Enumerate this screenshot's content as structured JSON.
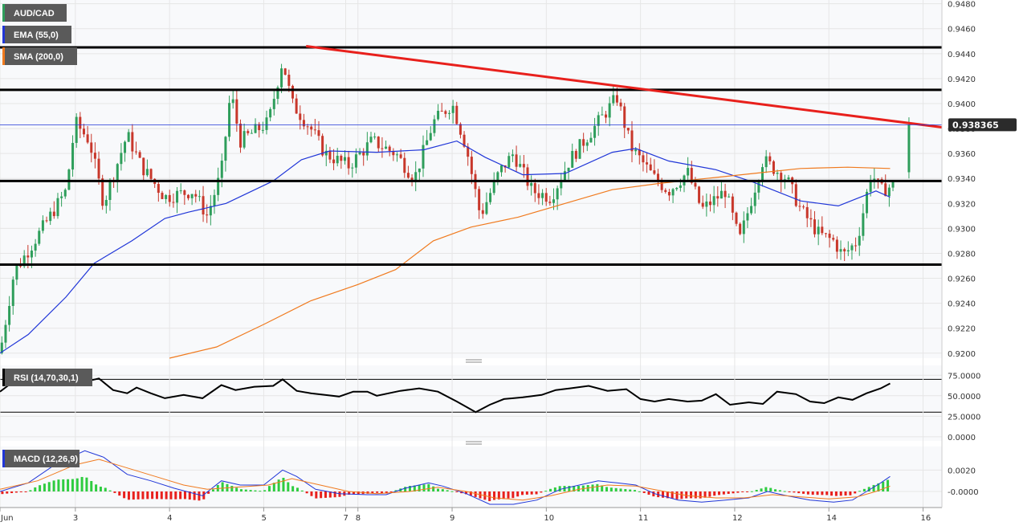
{
  "chart_data": {
    "type": "candlestick",
    "symbol": "AUD/CAD",
    "indicators": {
      "ema": {
        "label": "EMA (55,0)",
        "color": "#2036d8"
      },
      "sma": {
        "label": "SMA (200,0)",
        "color": "#f07a1e"
      },
      "rsi": {
        "label": "RSI (14,70,30,1)",
        "ticks": [
          "75.0000",
          "50.0000",
          "25.0000",
          "0.0000"
        ],
        "levels": [
          70,
          30
        ]
      },
      "macd": {
        "label": "MACD (12,26,9)",
        "ticks": [
          "0.0020",
          "-0.0000"
        ]
      }
    },
    "price_axis": {
      "ticks": [
        "0.9480",
        "0.9460",
        "0.9440",
        "0.9420",
        "0.9400",
        "0.9380",
        "0.9360",
        "0.9340",
        "0.9320",
        "0.9300",
        "0.9280",
        "0.9260",
        "0.9240",
        "0.9220",
        "0.9200"
      ],
      "ylim": [
        0.9196,
        0.9483
      ]
    },
    "x_axis": {
      "ticks": [
        "Jun",
        "3",
        "4",
        "5",
        "7",
        "8",
        "9",
        "10",
        "11",
        "12",
        "14",
        "16"
      ],
      "xlim": [
        0,
        10
      ]
    },
    "current_price": {
      "value": 0.9383,
      "label": "0.938365"
    },
    "horizontal_levels": [
      0.9445,
      0.9411,
      0.9338,
      0.9271
    ],
    "trendline": {
      "from": [
        3.25,
        0.9446
      ],
      "to": [
        10,
        0.9381
      ],
      "color": "#e8201c"
    },
    "colors": {
      "up": "#2e9e5b",
      "down": "#c8372b",
      "grid": "#e6e6e6",
      "rsi": "#000000",
      "macd_line": "#2036d8",
      "signal_line": "#f07a1e",
      "hist_up": "#2ecc40",
      "hist_down": "#e8201c"
    },
    "ema_series": [
      [
        0,
        0.92
      ],
      [
        0.3,
        0.9215
      ],
      [
        0.7,
        0.9245
      ],
      [
        1.0,
        0.9272
      ],
      [
        1.4,
        0.929
      ],
      [
        1.75,
        0.9308
      ],
      [
        2.0,
        0.9313
      ],
      [
        2.4,
        0.932
      ],
      [
        2.9,
        0.9338
      ],
      [
        3.2,
        0.9355
      ],
      [
        3.5,
        0.9362
      ],
      [
        4.0,
        0.9361
      ],
      [
        4.5,
        0.9363
      ],
      [
        4.85,
        0.937
      ],
      [
        5.15,
        0.9357
      ],
      [
        5.55,
        0.9343
      ],
      [
        6.0,
        0.9344
      ],
      [
        6.5,
        0.9361
      ],
      [
        6.75,
        0.9364
      ],
      [
        7.1,
        0.9354
      ],
      [
        7.6,
        0.9347
      ],
      [
        8.0,
        0.9337
      ],
      [
        8.5,
        0.9322
      ],
      [
        8.9,
        0.9318
      ],
      [
        9.3,
        0.933
      ],
      [
        9.45,
        0.9325
      ]
    ],
    "sma_series": [
      [
        1.8,
        0.9196
      ],
      [
        2.3,
        0.9205
      ],
      [
        2.8,
        0.9223
      ],
      [
        3.3,
        0.9242
      ],
      [
        3.8,
        0.9255
      ],
      [
        4.2,
        0.9267
      ],
      [
        4.6,
        0.929
      ],
      [
        5.0,
        0.9301
      ],
      [
        5.5,
        0.9309
      ],
      [
        6.0,
        0.932
      ],
      [
        6.5,
        0.9331
      ],
      [
        7.0,
        0.9336
      ],
      [
        7.5,
        0.934
      ],
      [
        8.0,
        0.9344
      ],
      [
        8.5,
        0.9348
      ],
      [
        9.0,
        0.9349
      ],
      [
        9.45,
        0.9348
      ]
    ],
    "rsi_series": [
      [
        0,
        55
      ],
      [
        0.15,
        68
      ],
      [
        0.3,
        71
      ],
      [
        0.5,
        68
      ],
      [
        0.7,
        72
      ],
      [
        0.9,
        67
      ],
      [
        1.05,
        71
      ],
      [
        1.2,
        57
      ],
      [
        1.35,
        53
      ],
      [
        1.45,
        60
      ],
      [
        1.6,
        53
      ],
      [
        1.75,
        47
      ],
      [
        1.95,
        51
      ],
      [
        2.15,
        47
      ],
      [
        2.35,
        63
      ],
      [
        2.5,
        57
      ],
      [
        2.7,
        61
      ],
      [
        2.9,
        62
      ],
      [
        3.0,
        70
      ],
      [
        3.15,
        56
      ],
      [
        3.3,
        53
      ],
      [
        3.45,
        51
      ],
      [
        3.6,
        49
      ],
      [
        3.75,
        55
      ],
      [
        3.9,
        55
      ],
      [
        4.0,
        50
      ],
      [
        4.25,
        56
      ],
      [
        4.45,
        59
      ],
      [
        4.65,
        55
      ],
      [
        4.85,
        43
      ],
      [
        5.05,
        30
      ],
      [
        5.2,
        39
      ],
      [
        5.35,
        46
      ],
      [
        5.55,
        48
      ],
      [
        5.75,
        51
      ],
      [
        5.9,
        57
      ],
      [
        6.05,
        59
      ],
      [
        6.25,
        62
      ],
      [
        6.45,
        56
      ],
      [
        6.65,
        58
      ],
      [
        6.8,
        46
      ],
      [
        6.95,
        43
      ],
      [
        7.1,
        46
      ],
      [
        7.3,
        43
      ],
      [
        7.45,
        44
      ],
      [
        7.6,
        52
      ],
      [
        7.75,
        39
      ],
      [
        7.95,
        42
      ],
      [
        8.1,
        40
      ],
      [
        8.25,
        55
      ],
      [
        8.45,
        52
      ],
      [
        8.6,
        43
      ],
      [
        8.75,
        41
      ],
      [
        8.9,
        48
      ],
      [
        9.05,
        45
      ],
      [
        9.2,
        53
      ],
      [
        9.35,
        59
      ],
      [
        9.45,
        65
      ]
    ],
    "macd_series": [
      [
        0,
        0.0
      ],
      [
        0.3,
        0.0008
      ],
      [
        0.6,
        0.0026
      ],
      [
        0.9,
        0.0038
      ],
      [
        1.1,
        0.0032
      ],
      [
        1.35,
        0.0016
      ],
      [
        1.6,
        0.001
      ],
      [
        1.85,
        0.0003
      ],
      [
        2.15,
        -0.0004
      ],
      [
        2.35,
        0.001
      ],
      [
        2.55,
        0.0006
      ],
      [
        2.8,
        0.0006
      ],
      [
        3.0,
        0.002
      ],
      [
        3.15,
        0.0014
      ],
      [
        3.35,
        0.0002
      ],
      [
        3.6,
        -0.0002
      ],
      [
        3.9,
        -0.0003
      ],
      [
        4.1,
        -0.0003
      ],
      [
        4.3,
        0.0003
      ],
      [
        4.55,
        0.0008
      ],
      [
        4.7,
        0.0005
      ],
      [
        4.95,
        -0.0002
      ],
      [
        5.2,
        -0.0012
      ],
      [
        5.45,
        -0.0012
      ],
      [
        5.7,
        -0.0008
      ],
      [
        5.95,
        0.0002
      ],
      [
        6.15,
        0.0006
      ],
      [
        6.35,
        0.001
      ],
      [
        6.55,
        0.0008
      ],
      [
        6.75,
        0.0006
      ],
      [
        6.95,
        -0.0002
      ],
      [
        7.2,
        -0.0008
      ],
      [
        7.45,
        -0.001
      ],
      [
        7.7,
        -0.0008
      ],
      [
        7.95,
        -0.0006
      ],
      [
        8.15,
        0.0
      ],
      [
        8.35,
        -0.0004
      ],
      [
        8.6,
        -0.0008
      ],
      [
        8.85,
        -0.001
      ],
      [
        9.05,
        -0.0008
      ],
      [
        9.2,
        0.0
      ],
      [
        9.35,
        0.0008
      ],
      [
        9.45,
        0.0014
      ]
    ],
    "signal_series": [
      [
        0,
        0.0002
      ],
      [
        0.4,
        0.001
      ],
      [
        0.8,
        0.0025
      ],
      [
        1.05,
        0.003
      ],
      [
        1.35,
        0.0022
      ],
      [
        1.65,
        0.0014
      ],
      [
        1.95,
        0.0006
      ],
      [
        2.2,
        0.0002
      ],
      [
        2.5,
        0.0004
      ],
      [
        2.85,
        0.0006
      ],
      [
        3.1,
        0.0012
      ],
      [
        3.4,
        0.0006
      ],
      [
        3.7,
        0.0
      ],
      [
        4.0,
        -0.0002
      ],
      [
        4.35,
        0.0
      ],
      [
        4.65,
        0.0004
      ],
      [
        4.95,
        0.0
      ],
      [
        5.25,
        -0.0006
      ],
      [
        5.55,
        -0.0008
      ],
      [
        5.85,
        -0.0004
      ],
      [
        6.15,
        0.0002
      ],
      [
        6.45,
        0.0006
      ],
      [
        6.75,
        0.0005
      ],
      [
        7.0,
        0.0001
      ],
      [
        7.3,
        -0.0004
      ],
      [
        7.6,
        -0.0006
      ],
      [
        7.9,
        -0.0006
      ],
      [
        8.2,
        -0.0003
      ],
      [
        8.5,
        -0.0005
      ],
      [
        8.8,
        -0.0007
      ],
      [
        9.1,
        -0.0005
      ],
      [
        9.3,
        0.0
      ],
      [
        9.45,
        0.0005
      ]
    ]
  }
}
